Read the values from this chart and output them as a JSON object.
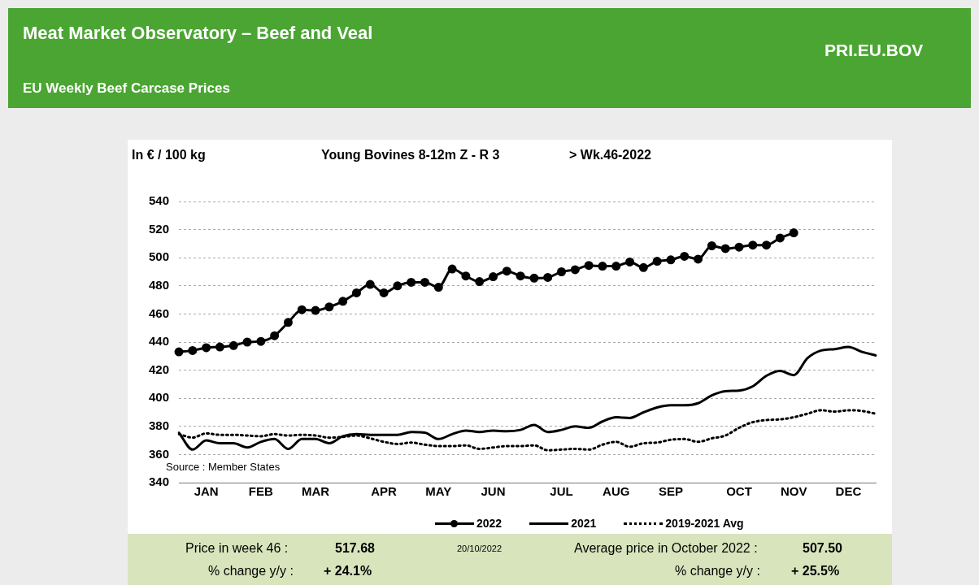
{
  "chart_data": {
    "type": "line",
    "title": "Meat Market Observatory – Beef and Veal",
    "subtitle": "EU Weekly Beef Carcase Prices",
    "ylabel": "In € / 100 kg",
    "annotations": [
      "PRI.EU.BOV",
      "Young Bovines 8-12m Z - R 3",
      "> Wk.46-2022",
      "Source : Member States",
      "Price in week 46 :",
      "517.68",
      "20/10/2022",
      "Average price in October 2022 :",
      "507.50",
      "% change y/y :",
      "+ 24.1%",
      "% change y/y :",
      "+ 25.5%"
    ],
    "categories": [
      null,
      null,
      "JAN",
      null,
      null,
      null,
      "FEB",
      null,
      null,
      null,
      "MAR",
      null,
      null,
      null,
      null,
      "APR",
      null,
      null,
      null,
      "MAY",
      null,
      null,
      null,
      "JUN",
      null,
      null,
      null,
      null,
      "JUL",
      null,
      null,
      null,
      "AUG",
      null,
      null,
      null,
      "SEP",
      null,
      null,
      null,
      null,
      "OCT",
      null,
      null,
      null,
      "NOV",
      null,
      null,
      null,
      "DEC",
      null,
      null
    ],
    "ylim": [
      340,
      540
    ],
    "yticks": [
      340,
      360,
      380,
      400,
      420,
      440,
      460,
      480,
      500,
      520,
      540
    ],
    "grid": "y",
    "legend": "bottom",
    "series": [
      {
        "name": "2022",
        "color": "#000000",
        "marker": "circle",
        "line_style": "solid",
        "values": [
          433,
          434,
          436,
          436.5,
          437.5,
          440,
          440.5,
          444.5,
          454,
          463,
          462.5,
          465,
          469,
          475,
          481,
          475,
          480,
          482.5,
          482.5,
          479,
          492,
          487,
          483,
          486.5,
          490.5,
          487,
          485.5,
          486,
          490,
          491.5,
          494.5,
          494,
          494,
          497,
          493,
          497.5,
          498.5,
          501,
          499,
          508.5,
          506.5,
          507.5,
          509,
          509,
          514,
          517.68,
          null,
          null,
          null,
          null,
          null,
          null
        ]
      },
      {
        "name": "2021",
        "color": "#000000",
        "marker": "none",
        "line_style": "solid",
        "values": [
          375.5,
          363.5,
          370,
          368,
          368,
          365,
          369,
          371,
          364,
          371,
          371,
          368,
          373,
          374.5,
          374,
          374,
          374,
          376,
          375.5,
          371,
          374.5,
          377,
          376,
          377,
          376.5,
          377.5,
          381,
          376,
          377.5,
          380,
          379,
          383.5,
          386.5,
          386,
          390,
          393.5,
          395,
          395,
          396.5,
          402,
          405,
          405.5,
          408.5,
          416,
          419.5,
          416.5,
          428.5,
          434,
          435,
          436.5,
          433,
          430.5
        ]
      },
      {
        "name": "2019-2021 Avg",
        "color": "#000000",
        "marker": "none",
        "line_style": "dotted",
        "values": [
          374.5,
          372,
          375,
          374,
          374,
          373.5,
          373,
          374.5,
          373.5,
          374,
          373.5,
          372,
          372.5,
          373.5,
          371.5,
          369,
          367.5,
          368.5,
          367,
          366,
          366,
          366.5,
          364,
          365,
          366,
          366,
          366.5,
          363,
          363.5,
          364,
          363.5,
          367,
          369,
          365.5,
          368,
          368.5,
          370.5,
          371,
          369,
          371.5,
          373.5,
          379,
          383,
          384.5,
          385,
          386.5,
          389,
          391.5,
          390.5,
          391.5,
          391,
          389
        ]
      }
    ]
  }
}
